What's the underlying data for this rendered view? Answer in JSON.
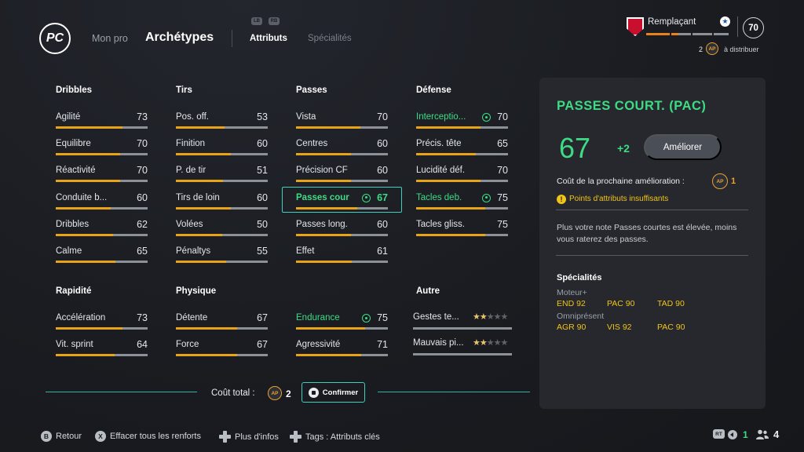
{
  "header": {
    "logo_text": "PC",
    "nav_pro": "Mon pro",
    "nav_archetypes": "Archétypes",
    "bumper_left": "LB",
    "bumper_right": "RB",
    "tab_attributs": "Attributs",
    "tab_specialites": "Spécialités",
    "status": "Remplaçant",
    "star": "★",
    "overall": "70",
    "ap_to_distribute": "2",
    "ap_badge": "AP",
    "distribute_text": "à distribuer"
  },
  "columns": [
    {
      "heading": "Dribbles",
      "stats": [
        {
          "label": "Agilité",
          "value": 73,
          "level": 0.73
        },
        {
          "label": "Équilibre",
          "value": 70,
          "level": 0.7
        },
        {
          "label": "Réactivité",
          "value": 70,
          "level": 0.7
        },
        {
          "label": "Conduite b...",
          "value": 60,
          "level": 0.6
        },
        {
          "label": "Dribbles",
          "value": 62,
          "level": 0.62
        },
        {
          "label": "Calme",
          "value": 65,
          "level": 0.65
        }
      ]
    },
    {
      "heading": "Tirs",
      "stats": [
        {
          "label": "Pos. off.",
          "value": 53,
          "level": 0.53
        },
        {
          "label": "Finition",
          "value": 60,
          "level": 0.6
        },
        {
          "label": "P. de tir",
          "value": 51,
          "level": 0.51
        },
        {
          "label": "Tirs de loin",
          "value": 60,
          "level": 0.6
        },
        {
          "label": "Volées",
          "value": 50,
          "level": 0.5
        },
        {
          "label": "Pénaltys",
          "value": 55,
          "level": 0.55
        }
      ]
    },
    {
      "heading": "Passes",
      "stats": [
        {
          "label": "Vista",
          "value": 70,
          "level": 0.7
        },
        {
          "label": "Centres",
          "value": 60,
          "level": 0.6
        },
        {
          "label": "Précision CF",
          "value": 60,
          "level": 0.6
        },
        {
          "label": "Passes cour",
          "value": 67,
          "level": 0.67,
          "boosted": true,
          "selected": true
        },
        {
          "label": "Passes long.",
          "value": 60,
          "level": 0.6
        },
        {
          "label": "Effet",
          "value": 61,
          "level": 0.61
        }
      ]
    },
    {
      "heading": "Défense",
      "stats": [
        {
          "label": "Interceptio...",
          "value": 70,
          "level": 0.7,
          "boosted": true
        },
        {
          "label": "Précis. tête",
          "value": 65,
          "level": 0.65
        },
        {
          "label": "Lucidité déf.",
          "value": 70,
          "level": 0.7
        },
        {
          "label": "Tacles deb.",
          "value": 75,
          "level": 0.75,
          "boosted": true
        },
        {
          "label": "Tacles gliss.",
          "value": 75,
          "level": 0.75
        }
      ]
    }
  ],
  "columns2": [
    {
      "heading": "Rapidité",
      "stats": [
        {
          "label": "Accélération",
          "value": 73,
          "level": 0.73
        },
        {
          "label": "Vit. sprint",
          "value": 64,
          "level": 0.64
        }
      ]
    },
    {
      "heading": "Physique",
      "stats": [
        {
          "label": "Détente",
          "value": 67,
          "level": 0.67
        },
        {
          "label": "Force",
          "value": 67,
          "level": 0.67
        }
      ]
    },
    {
      "heading": "",
      "stats": [
        {
          "label": "Endurance",
          "value": 75,
          "level": 0.75,
          "boosted": true
        },
        {
          "label": "Agressivité",
          "value": 71,
          "level": 0.71
        }
      ]
    }
  ],
  "other": {
    "heading": "Autre",
    "items": [
      {
        "label": "Gestes te...",
        "stars": 2,
        "max": 5
      },
      {
        "label": "Mauvais pi...",
        "stars": 2,
        "max": 5
      }
    ]
  },
  "cost": {
    "label": "Coût total :",
    "value": "2",
    "ap_badge": "AP",
    "confirm": "Confirmer"
  },
  "panel": {
    "title": "PASSES COURT. (PAC)",
    "value": "67",
    "plus": "+2",
    "improve": "Améliorer",
    "next_cost_label": "Coût de la prochaine amélioration :",
    "next_cost_value": "1",
    "ap_badge": "AP",
    "warning_icon": "!",
    "warning": "Points d'attributs insuffisants",
    "description": "Plus votre note Passes courtes est élevée, moins vous raterez des passes.",
    "spec_title": "Spécialités",
    "groups": [
      {
        "name": "Moteur+",
        "items": [
          "END 92",
          "PAC 90",
          "TAD 90"
        ]
      },
      {
        "name": "Omniprésent",
        "items": [
          "AGR 90",
          "VIS 92",
          "PAC 90"
        ]
      }
    ]
  },
  "footer": {
    "back_key": "B",
    "back": "Retour",
    "clear_key": "X",
    "clear": "Effacer tous les renforts",
    "info": "Plus d'infos",
    "tags": "Tags : Attributs clés",
    "rt_key": "RT",
    "green_count": "1",
    "people_count": "4"
  },
  "colors": {
    "accent_green": "#3ddc84",
    "bar_fill": "#e8a317",
    "teal": "#3ecfbf",
    "ap_orange": "#f0a02c",
    "warning": "#f0c419"
  },
  "progress": {
    "segments": [
      {
        "color": "#e8821c",
        "fill": 1.0
      },
      {
        "color": "#e8821c",
        "fill": 0.35
      },
      {
        "color": "#8c9198",
        "fill": 0
      },
      {
        "color": "#8c9198",
        "fill": 0
      }
    ]
  }
}
